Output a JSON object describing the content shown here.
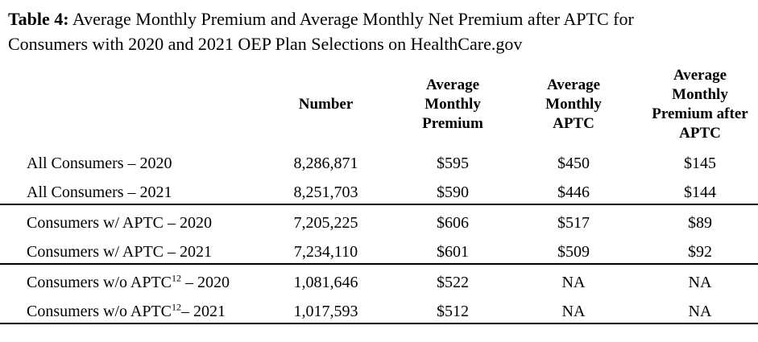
{
  "title": {
    "label": "Table 4:",
    "line1_rest": " Average Monthly Premium and Average Monthly Net Premium after APTC for",
    "line2": "Consumers with 2020 and 2021 OEP Plan Selections on HealthCare.gov"
  },
  "table": {
    "headers": {
      "row_label": "",
      "number": "Number",
      "avg_monthly_premium": "Average Monthly Premium",
      "avg_monthly_aptc": "Average Monthly APTC",
      "avg_monthly_premium_after_aptc": "Average Monthly Premium after APTC"
    },
    "rows": [
      {
        "label": {
          "pre": "All Consumers – 2020",
          "sup": "",
          "post": ""
        },
        "number": "8,286,871",
        "avg_monthly_premium": "$595",
        "avg_monthly_aptc": "$450",
        "avg_monthly_premium_after_aptc": "$145"
      },
      {
        "label": {
          "pre": "All Consumers – 2021",
          "sup": "",
          "post": ""
        },
        "number": "8,251,703",
        "avg_monthly_premium": "$590",
        "avg_monthly_aptc": "$446",
        "avg_monthly_premium_after_aptc": "$144"
      },
      {
        "label": {
          "pre": "Consumers w/ APTC – 2020",
          "sup": "",
          "post": ""
        },
        "number": "7,205,225",
        "avg_monthly_premium": "$606",
        "avg_monthly_aptc": "$517",
        "avg_monthly_premium_after_aptc": "$89"
      },
      {
        "label": {
          "pre": "Consumers w/ APTC – 2021",
          "sup": "",
          "post": ""
        },
        "number": "7,234,110",
        "avg_monthly_premium": "$601",
        "avg_monthly_aptc": "$509",
        "avg_monthly_premium_after_aptc": "$92"
      },
      {
        "label": {
          "pre": "Consumers w/o APTC",
          "sup": "12",
          "post": " – 2020"
        },
        "number": "1,081,646",
        "avg_monthly_premium": "$522",
        "avg_monthly_aptc": "NA",
        "avg_monthly_premium_after_aptc": "NA"
      },
      {
        "label": {
          "pre": "Consumers w/o APTC",
          "sup": "12",
          "post": "– 2021"
        },
        "number": "1,017,593",
        "avg_monthly_premium": "$512",
        "avg_monthly_aptc": "NA",
        "avg_monthly_premium_after_aptc": "NA"
      }
    ]
  },
  "colors": {
    "text": "#000000",
    "background": "#ffffff",
    "rule": "#000000"
  }
}
